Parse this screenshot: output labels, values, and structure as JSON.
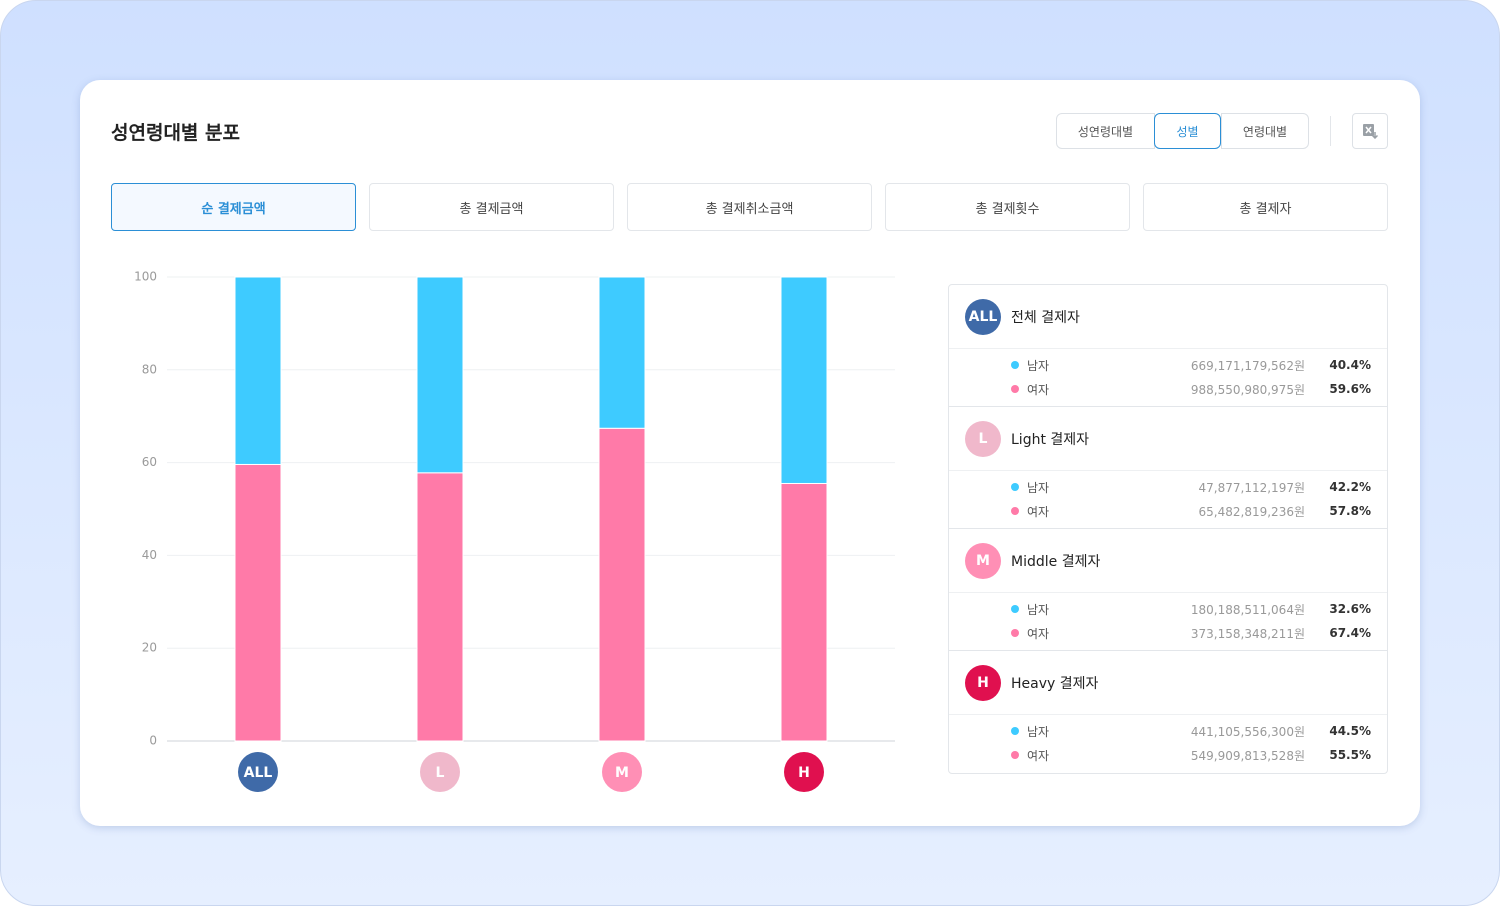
{
  "header": {
    "title": "성연령대별 분포"
  },
  "toggle": {
    "options": [
      "성연령대별",
      "성별",
      "연령대별"
    ],
    "active": 1
  },
  "tabs": {
    "options": [
      "순 결제금액",
      "총 결제금액",
      "총 결제취소금액",
      "총 결제횟수",
      "총 결제자"
    ],
    "active": 0
  },
  "chart_data": {
    "type": "bar",
    "stacked": true,
    "categories": [
      "ALL",
      "L",
      "M",
      "H"
    ],
    "category_colors": [
      "#3f6aa8",
      "#f0b8cb",
      "#ff8fb5",
      "#e0104f"
    ],
    "series": [
      {
        "name": "남자",
        "color": "#3ecbff",
        "values": [
          40.4,
          42.2,
          32.6,
          44.5
        ],
        "value_labels": [
          "40.4%",
          "42.2%",
          "32.6%",
          "44.5%"
        ]
      },
      {
        "name": "여자",
        "color": "#ff7aa8",
        "values": [
          59.6,
          57.8,
          67.4,
          55.5
        ],
        "value_labels": [
          "59.6%",
          "57.8%",
          "67.4%",
          "55.5%"
        ]
      }
    ],
    "ylim": [
      0,
      100
    ],
    "yticks": [
      0,
      20,
      40,
      60,
      80,
      100
    ],
    "grid": true
  },
  "panel": {
    "groups": [
      {
        "label": "전체 결제자",
        "amounts": [
          "669,171,179,562원",
          "988,550,980,975원"
        ]
      },
      {
        "label": "Light 결제자",
        "amounts": [
          "47,877,112,197원",
          "65,482,819,236원"
        ]
      },
      {
        "label": "Middle 결제자",
        "amounts": [
          "180,188,511,064원",
          "373,158,348,211원"
        ]
      },
      {
        "label": "Heavy 결제자",
        "amounts": [
          "441,105,556,300원",
          "549,909,813,528원"
        ]
      }
    ]
  }
}
